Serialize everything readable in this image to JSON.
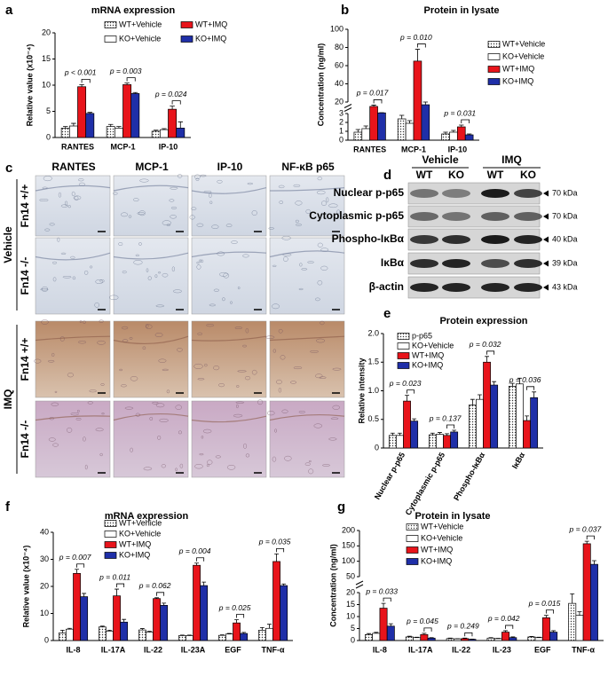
{
  "chart_data": [
    {
      "type": "bar",
      "panel_label": "a",
      "title": "mRNA expression",
      "y_label": "Relative value (x10⁻⁴)",
      "categories": [
        "RANTES",
        "MCP-1",
        "IP-10"
      ],
      "series": [
        {
          "name": "WT+Vehicle",
          "color": "#ffffff",
          "hatch": "dots",
          "values": [
            1.8,
            2.1,
            1.2
          ],
          "errors": [
            0.3,
            0.4,
            0.2
          ]
        },
        {
          "name": "KO+Vehicle",
          "color": "#ffffff",
          "values": [
            2.2,
            1.8,
            1.5
          ],
          "errors": [
            0.5,
            0.3,
            0.2
          ]
        },
        {
          "name": "WT+IMQ",
          "color": "#e8141b",
          "values": [
            9.7,
            10.1,
            5.4
          ],
          "errors": [
            0.4,
            0.3,
            0.6
          ]
        },
        {
          "name": "KO+IMQ",
          "color": "#1f2fa8",
          "values": [
            4.6,
            8.4,
            1.8
          ],
          "errors": [
            0.2,
            0.2,
            1.2
          ]
        }
      ],
      "ylim": [
        0,
        20
      ],
      "yticks": [
        0,
        5,
        10,
        15,
        20
      ],
      "legend": "top",
      "annotations": [
        {
          "text": "p < 0.001",
          "category": "RANTES"
        },
        {
          "text": "p = 0.003",
          "category": "MCP-1"
        },
        {
          "text": "p = 0.024",
          "category": "IP-10"
        }
      ]
    },
    {
      "type": "bar",
      "panel_label": "b",
      "title": "Protein in lysate",
      "y_label": "Concentration (ng/ml)",
      "categories": [
        "RANTES",
        "MCP-1",
        "IP-10"
      ],
      "series": [
        {
          "name": "WT+Vehicle",
          "color": "#ffffff",
          "hatch": "dots",
          "values": [
            0.9,
            2.4,
            0.7
          ],
          "errors": [
            0.3,
            0.4,
            0.2
          ]
        },
        {
          "name": "KO+Vehicle",
          "color": "#ffffff",
          "values": [
            1.3,
            1.9,
            0.9
          ],
          "errors": [
            0.3,
            0.3,
            0.2
          ]
        },
        {
          "name": "WT+IMQ",
          "color": "#e8141b",
          "values": [
            13.5,
            65,
            1.5
          ],
          "errors": [
            2,
            13,
            0.2
          ]
        },
        {
          "name": "KO+IMQ",
          "color": "#1f2fa8",
          "values": [
            4,
            16,
            0.6
          ],
          "errors": [
            0.3,
            4,
            0.1
          ]
        }
      ],
      "ylim": [
        0,
        100
      ],
      "ysegments": [
        {
          "ylim": [
            0,
            3
          ],
          "yticks": [
            0,
            1,
            2,
            3
          ]
        },
        {
          "ylim": [
            20,
            100
          ],
          "yticks": [
            20,
            40,
            60,
            80,
            100
          ]
        }
      ],
      "legend": "right",
      "annotations": [
        {
          "text": "p = 0.017",
          "category": "RANTES"
        },
        {
          "text": "p = 0.010",
          "category": "MCP-1"
        },
        {
          "text": "p = 0.031",
          "category": "IP-10"
        }
      ]
    },
    {
      "type": "bar",
      "panel_label": "e",
      "title": "Protein expression",
      "y_label": "Relative intensity",
      "categories": [
        "Nuclear p-p65",
        "Cytoplasmic p-p65",
        "Phospho-IκBα",
        "IκBα"
      ],
      "series": [
        {
          "name": "p-p65",
          "color": "#ffffff",
          "hatch": "dots",
          "values": [
            0.22,
            0.23,
            0.75,
            1.08
          ],
          "errors": [
            0.04,
            0.03,
            0.1,
            0.05
          ]
        },
        {
          "name": "KO+Vehicle",
          "color": "#ffffff",
          "values": [
            0.22,
            0.24,
            0.85,
            1.12
          ],
          "errors": [
            0.04,
            0.03,
            0.08,
            0.1
          ]
        },
        {
          "name": "WT+IMQ",
          "color": "#e8141b",
          "values": [
            0.82,
            0.22,
            1.5,
            0.48
          ],
          "errors": [
            0.1,
            0.03,
            0.1,
            0.08
          ]
        },
        {
          "name": "KO+IMQ",
          "color": "#1f2fa8",
          "values": [
            0.47,
            0.28,
            1.1,
            0.88
          ],
          "errors": [
            0.04,
            0.03,
            0.06,
            0.1
          ]
        }
      ],
      "ylim": [
        0,
        2
      ],
      "yticks": [
        0,
        0.5,
        {
          "value": 1,
          "label": "1.0"
        },
        1.5,
        {
          "value": 2,
          "label": "2.0"
        }
      ],
      "legend": "top-left",
      "annotations": [
        {
          "text": "p = 0.023",
          "category": "Nuclear p-p65"
        },
        {
          "text": "p = 0.137",
          "category": "Cytoplasmic p-p65"
        },
        {
          "text": "p = 0.032",
          "category": "Phospho-IκBα"
        },
        {
          "text": "p = 0.036",
          "category": "IκBα"
        }
      ]
    },
    {
      "type": "bar",
      "panel_label": "f",
      "title": "mRNA expression",
      "y_label": "Relative value (x10⁻⁴)",
      "categories": [
        "IL-8",
        "IL-17A",
        "IL-22",
        "IL-23A",
        "EGF",
        "TNF-α"
      ],
      "series": [
        {
          "name": "WT+Vehicle",
          "color": "#ffffff",
          "hatch": "dots",
          "values": [
            2.8,
            5,
            3.9,
            1.8,
            1.9,
            3.8
          ],
          "errors": [
            1,
            0.3,
            0.5,
            0.2,
            0.2,
            1
          ]
        },
        {
          "name": "KO+Vehicle",
          "color": "#ffffff",
          "values": [
            4.2,
            3.5,
            3.1,
            1.8,
            2.4,
            4.5
          ],
          "errors": [
            0.3,
            0.3,
            0.3,
            0.2,
            0.2,
            1.5
          ]
        },
        {
          "name": "WT+IMQ",
          "color": "#e8141b",
          "values": [
            24.8,
            16.5,
            15.5,
            27.8,
            6.5,
            29.2
          ],
          "errors": [
            1.5,
            2.5,
            0.3,
            0.8,
            1.2,
            2.8
          ]
        },
        {
          "name": "KO+IMQ",
          "color": "#1f2fa8",
          "values": [
            16.2,
            6.8,
            13,
            20.3,
            2.6,
            20.3
          ],
          "errors": [
            1.2,
            1,
            0.8,
            1.3,
            0.4,
            0.6
          ]
        }
      ],
      "ylim": [
        0,
        40
      ],
      "yticks": [
        0,
        10,
        20,
        30,
        40
      ],
      "legend": "top",
      "annotations": [
        {
          "text": "p = 0.007",
          "category": "IL-8"
        },
        {
          "text": "p = 0.011",
          "category": "IL-17A"
        },
        {
          "text": "p = 0.062",
          "category": "IL-22"
        },
        {
          "text": "p = 0.004",
          "category": "IL-23A"
        },
        {
          "text": "p = 0.025",
          "category": "EGF"
        },
        {
          "text": "p = 0.035",
          "category": "TNF-α"
        }
      ]
    },
    {
      "type": "bar",
      "panel_label": "g",
      "title": "Protein in lysate",
      "y_label": "Concentration (ng/ml)",
      "categories": [
        "IL-8",
        "IL-17A",
        "IL-22",
        "IL-23",
        "EGF",
        "TNF-α"
      ],
      "series": [
        {
          "name": "WT+Vehicle",
          "color": "#ffffff",
          "hatch": "dots",
          "values": [
            2.5,
            1.5,
            0.8,
            1,
            1.5,
            15.5
          ],
          "errors": [
            0.4,
            0.3,
            0.2,
            0.2,
            0.2,
            4
          ]
        },
        {
          "name": "KO+Vehicle",
          "color": "#ffffff",
          "values": [
            3,
            1.2,
            0.7,
            0.8,
            1.2,
            10.5
          ],
          "errors": [
            0.4,
            0.2,
            0.1,
            0.1,
            0.2,
            1.5
          ]
        },
        {
          "name": "WT+IMQ",
          "color": "#e8141b",
          "values": [
            13.5,
            2.5,
            0.8,
            3.5,
            9.5,
            157
          ],
          "errors": [
            2,
            0.5,
            0.2,
            0.6,
            1,
            8
          ]
        },
        {
          "name": "KO+IMQ",
          "color": "#1f2fa8",
          "values": [
            6,
            1,
            0.5,
            1.2,
            3.5,
            90
          ],
          "errors": [
            1,
            0.2,
            0.1,
            0.3,
            0.6,
            12
          ]
        }
      ],
      "ylim": [
        0,
        200
      ],
      "ysegments": [
        {
          "ylim": [
            0,
            20
          ],
          "yticks": [
            0,
            5,
            10,
            15,
            20
          ]
        },
        {
          "ylim": [
            50,
            200
          ],
          "yticks": [
            50,
            100,
            150,
            200
          ]
        }
      ],
      "legend": "top",
      "annotations": [
        {
          "text": "p = 0.033",
          "category": "IL-8"
        },
        {
          "text": "p = 0.045",
          "category": "IL-17A"
        },
        {
          "text": "p = 0.249",
          "category": "IL-22"
        },
        {
          "text": "p = 0.042",
          "category": "IL-23"
        },
        {
          "text": "p = 0.015",
          "category": "EGF"
        },
        {
          "text": "p = 0.037",
          "category": "TNF-α"
        }
      ]
    }
  ],
  "histology": {
    "panel_label": "c",
    "columns": [
      "RANTES",
      "MCP-1",
      "IP-10",
      "NF-κB p65"
    ],
    "groups": [
      {
        "name": "Vehicle",
        "rows": [
          "Fn14 +/+",
          "Fn14 -/-"
        ]
      },
      {
        "name": "IMQ",
        "rows": [
          "Fn14 +/+",
          "Fn14 -/-"
        ]
      }
    ]
  },
  "western_blot": {
    "panel_label": "d",
    "groups": [
      {
        "name": "Vehicle",
        "lanes": [
          "WT",
          "KO"
        ]
      },
      {
        "name": "IMQ",
        "lanes": [
          "WT",
          "KO"
        ]
      }
    ],
    "rows": [
      {
        "name": "Nuclear p-p65",
        "size": "70 kDa"
      },
      {
        "name": "Cytoplasmic p-p65",
        "size": "70 kDa"
      },
      {
        "name": "Phospho-IκBα",
        "size": "40 kDa"
      },
      {
        "name": "IκBα",
        "size": "39 kDa"
      },
      {
        "name": "β-actin",
        "size": "43 kDa"
      }
    ]
  }
}
